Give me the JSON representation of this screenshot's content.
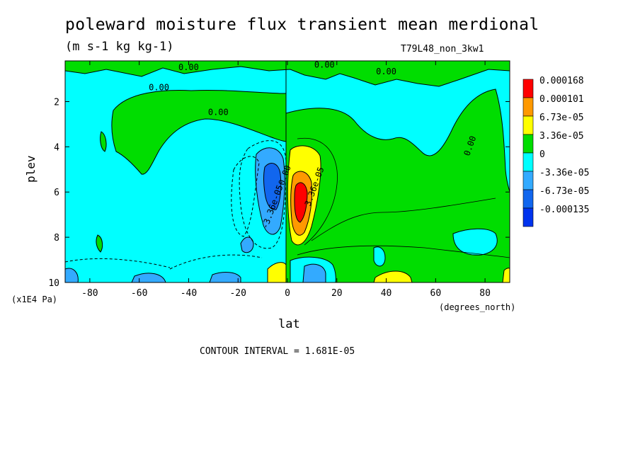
{
  "chart_data": {
    "type": "heatmap",
    "title": "poleward moisture flux transient mean merdional",
    "subtitle": "(m s-1 kg kg-1)",
    "run_label": "T79L48_non_3kw1",
    "xlabel": "lat",
    "xunit": "(degrees_north)",
    "ylabel": "plev",
    "yunit": "(x1E4 Pa)",
    "xlim": [
      -90,
      90
    ],
    "ylim": [
      10,
      0.2
    ],
    "xticks": [
      "-80",
      "-60",
      "-40",
      "-20",
      "0",
      "20",
      "40",
      "60",
      "80"
    ],
    "xtick_values": [
      -80,
      -60,
      -40,
      -20,
      0,
      20,
      40,
      60,
      80
    ],
    "yticks": [
      "2",
      "4",
      "6",
      "8",
      "10"
    ],
    "ytick_values": [
      2,
      4,
      6,
      8,
      10
    ],
    "contour_interval": "CONTOUR INTERVAL = 1.681E-05",
    "legend": {
      "placement": "right",
      "levels": [
        {
          "label": "0.000168",
          "color": "#ff0000"
        },
        {
          "label": "0.000101",
          "color": "#ff9900"
        },
        {
          "label": "6.73e-05",
          "color": "#ffff00"
        },
        {
          "label": "3.36e-05",
          "color": "#00dd00"
        },
        {
          "label": "0",
          "color": "#00ffff"
        },
        {
          "label": "-3.36e-05",
          "color": "#33aaff"
        },
        {
          "label": "-6.73e-05",
          "color": "#1166ee"
        },
        {
          "label": "-0.000135",
          "color": "#0033ee"
        }
      ]
    },
    "contour_labels": [
      {
        "text": "0.00",
        "lat": -40,
        "plev": 0.6
      },
      {
        "text": "0.00",
        "lat": -52,
        "plev": 1.5
      },
      {
        "text": "0.00",
        "lat": -28,
        "plev": 2.6
      },
      {
        "text": "0.00",
        "lat": 15,
        "plev": 0.5
      },
      {
        "text": "0.00",
        "lat": 40,
        "plev": 0.8
      },
      {
        "text": "0.00",
        "lat": 75,
        "plev": 4.0
      },
      {
        "text": "0.00",
        "lat": 0,
        "plev": 5.3
      },
      {
        "text": "3.36e-05",
        "lat": 12,
        "plev": 5.8
      },
      {
        "text": "-3.36e-05",
        "lat": -5,
        "plev": 6.7
      }
    ],
    "regions": [
      {
        "name": "upper-green-band",
        "sign": "positive",
        "lat_range": [
          -90,
          90
        ],
        "plev_range": [
          0.2,
          1.0
        ]
      },
      {
        "name": "upper-cyan-sh",
        "sign": "negative",
        "lat_range": [
          -90,
          -68
        ],
        "plev_range": [
          0.8,
          10
        ]
      },
      {
        "name": "green-plateau-sh",
        "sign": "positive",
        "lat_range": [
          -70,
          0
        ],
        "plev_range": [
          1.0,
          3.3
        ]
      },
      {
        "name": "nh-green-region",
        "sign": "positive",
        "lat_range": [
          0,
          90
        ],
        "plev_range": [
          1.8,
          10
        ]
      },
      {
        "name": "max-positive-core",
        "value": 0.000168,
        "lat": 5,
        "plev": 6.3
      },
      {
        "name": "min-negative-core",
        "value": -0.000101,
        "lat": -8,
        "plev": 5.8
      }
    ]
  }
}
